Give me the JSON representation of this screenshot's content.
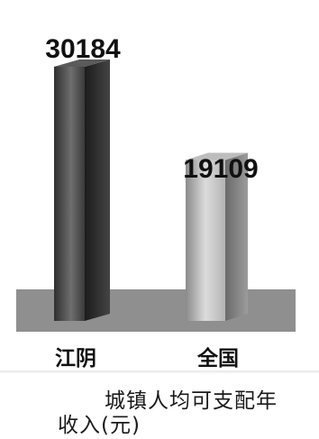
{
  "chart_data": {
    "type": "bar",
    "categories": [
      "江阴",
      "全国"
    ],
    "values": [
      30184,
      19109
    ],
    "value_labels": [
      "30184",
      "19109"
    ],
    "caption_line1": "城镇人均可支配年",
    "caption_line2": "收入(元)"
  }
}
